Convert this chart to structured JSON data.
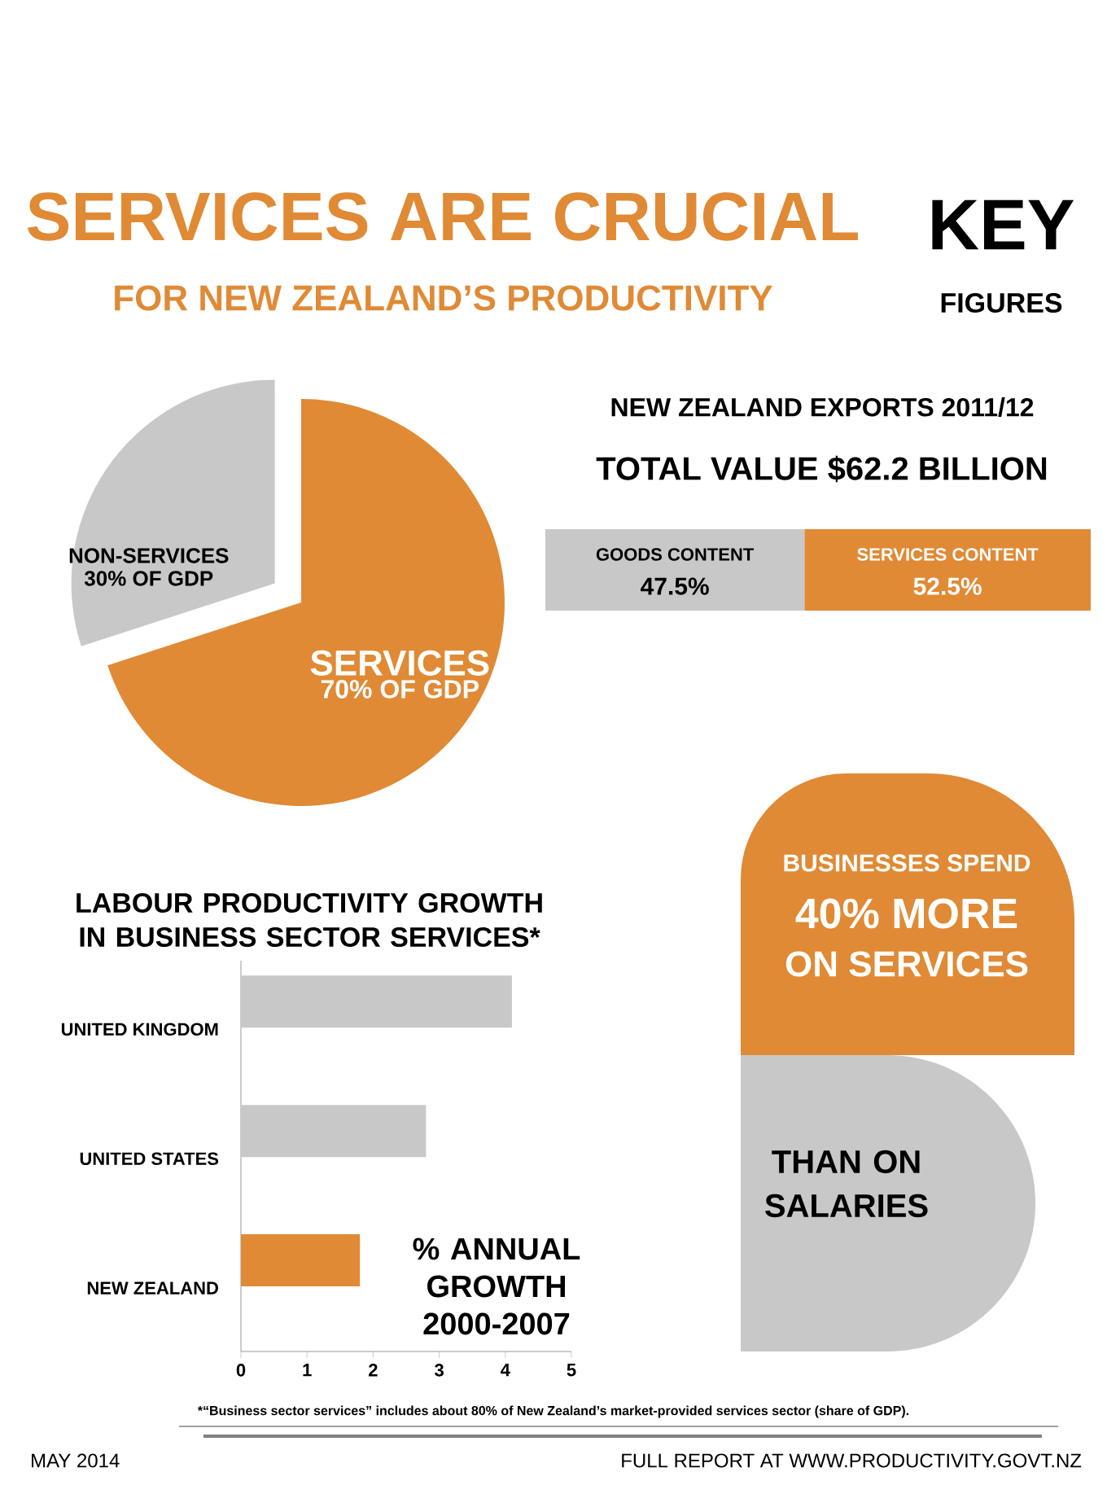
{
  "chart_data": [
    {
      "type": "other",
      "title": "SERVICES ARE CRUCIAL",
      "subtitle": "FOR NEW ZEALAND’S PRODUCTIVITY",
      "annotations": [
        "KEY",
        "FIGURES",
        "MAY 2014",
        "FULL REPORT AT WWW.PRODUCTIVITY.GOVT.NZ"
      ]
    },
    {
      "type": "pie",
      "categories": [
        "NON-SERVICES",
        "SERVICES"
      ],
      "values": [
        30,
        70
      ],
      "colors": [
        "#c8c8c8",
        "#e08a35"
      ],
      "value_labels": [
        "30% OF GDP",
        "70% OF GDP"
      ]
    },
    {
      "type": "bar",
      "title": "NEW ZEALAND EXPORTS 2011/12",
      "subtitle": "TOTAL VALUE $62.2 BILLION",
      "orientation": "horizontal",
      "stacked": true,
      "tick_labels": false,
      "categories": [
        null
      ],
      "series": [
        {
          "name": "GOODS CONTENT",
          "color": "#c8c8c8",
          "values": [
            47.5
          ],
          "value_labels": [
            "47.5%"
          ]
        },
        {
          "name": "SERVICES CONTENT",
          "color": "#e08a35",
          "values": [
            52.5
          ],
          "value_labels": [
            "52.5%"
          ]
        }
      ]
    },
    {
      "type": "other",
      "annotations": [
        "BUSINESSES SPEND",
        "40% MORE",
        "ON SERVICES",
        "THAN ON SALARIES"
      ]
    },
    {
      "type": "bar",
      "title": "LABOUR PRODUCTIVITY GROWTH IN BUSINESS SECTOR SERVICES*",
      "orientation": "horizontal",
      "categories": [
        "UNITED KINGDOM",
        "UNITED STATES",
        "NEW ZEALAND"
      ],
      "values": [
        4.1,
        2.8,
        1.8
      ],
      "colors": [
        "#c8c8c8",
        "#c8c8c8",
        "#e08a35"
      ],
      "xlim": [
        0,
        5
      ],
      "xticks": [
        0,
        1,
        2,
        3,
        4,
        5
      ],
      "annotations": [
        "% ANNUAL GROWTH 2000-2007",
        "*“Business sector services” includes about 80% of New Zealand’s market-provided services sector (share of GDP)."
      ]
    }
  ]
}
